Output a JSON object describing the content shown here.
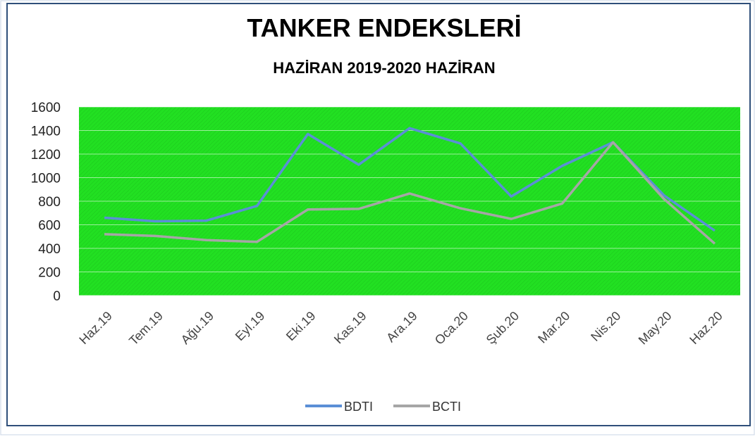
{
  "chart_data": {
    "type": "line",
    "title": "TANKER ENDEKSLERİ",
    "subtitle": "HAZİRAN 2019-2020  HAZİRAN",
    "categories": [
      "Haz.19",
      "Tem.19",
      "Ağu.19",
      "Eyl.19",
      "Eki.19",
      "Kas.19",
      "Ara.19",
      "Oca.20",
      "Şub.20",
      "Mar.20",
      "Nis.20",
      "May.20",
      "Haz.20"
    ],
    "series": [
      {
        "name": "BDTI",
        "color": "#5b8fd6",
        "values": [
          660,
          630,
          635,
          760,
          1370,
          1110,
          1420,
          1290,
          840,
          1100,
          1300,
          850,
          550
        ]
      },
      {
        "name": "BCTI",
        "color": "#a6a6a6",
        "values": [
          520,
          505,
          470,
          455,
          730,
          735,
          865,
          740,
          650,
          780,
          1300,
          820,
          440
        ]
      }
    ],
    "ylim": [
      0,
      1600
    ],
    "yticks": [
      0,
      200,
      400,
      600,
      800,
      1000,
      1200,
      1400,
      1600
    ],
    "grid": true,
    "plot_color": "#22e022",
    "legend": "bottom"
  }
}
